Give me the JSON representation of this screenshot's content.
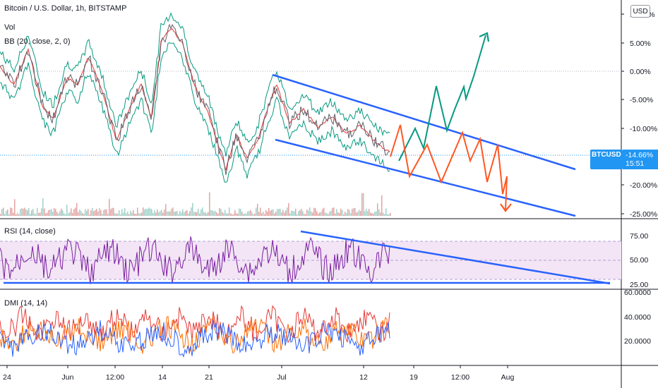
{
  "legend": {
    "main_title": "Bitcoin / U.S. Dollar, 1h, BITSTAMP",
    "vol": "Vol",
    "bb": "BB (20, close, 2, 0)",
    "rsi": "RSI (14, close)",
    "dmi": "DMI (14, 14)"
  },
  "usd_button": "USD",
  "price_label": {
    "symbol": "BTCUSD",
    "value": "-14.66%",
    "countdown": "15:51"
  },
  "colors": {
    "channel": "#2962ff",
    "arrow_green": "#089981",
    "arrow_red": "#ff5722",
    "rsi_line": "#7b1fa2",
    "rsi_band": "#f3e5f5",
    "dmi_red": "#e53935",
    "dmi_orange": "#ff6d00",
    "dmi_blue": "#2962ff"
  },
  "chart_data": [
    {
      "type": "line",
      "name": "price-pane",
      "y_axis_ticks": [
        "10.00%",
        "5.00%",
        "0.00%",
        "-5.00%",
        "-10.00%",
        "-15.00%",
        "-20.00%",
        "-25.00%"
      ],
      "ylim": [
        -25,
        10
      ],
      "x_axis_ticks": [
        "24",
        "Jun",
        "12:00",
        "14",
        "21",
        "Jul",
        "12",
        "19",
        "12:00",
        "Aug"
      ],
      "last_value": -14.66
    },
    {
      "type": "line",
      "name": "rsi-pane",
      "title": "RSI (14, close)",
      "y_axis_ticks": [
        "75.00",
        "50.00",
        "25.00"
      ],
      "ylim": [
        15,
        85
      ],
      "band": [
        30,
        70
      ]
    },
    {
      "type": "line",
      "name": "dmi-pane",
      "title": "DMI (14, 14)",
      "y_axis_ticks": [
        "60.0000",
        "40.0000",
        "20.0000"
      ],
      "ylim": [
        5,
        60
      ]
    }
  ]
}
